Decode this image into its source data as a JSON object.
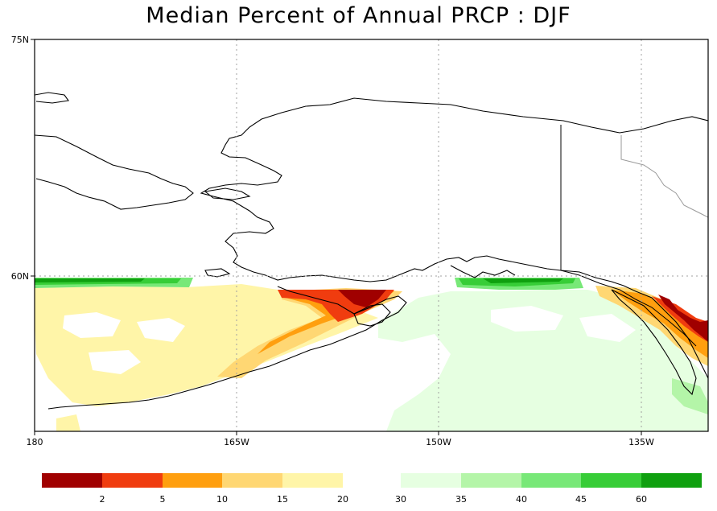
{
  "title": "Median Percent of Annual PRCP  :  DJF",
  "axes": {
    "lat_labels": [
      "75N",
      "60N"
    ],
    "lon_labels": [
      "180",
      "165W",
      "150W",
      "135W"
    ]
  },
  "colorbar": {
    "left": {
      "colors": [
        "#a00000",
        "#f03c0f",
        "#ff9f0f",
        "#ffd773",
        "#fff5a8"
      ],
      "labels": [
        "2",
        "5",
        "10",
        "15",
        "20"
      ]
    },
    "right": {
      "colors": [
        "#e6ffe1",
        "#b4f5a8",
        "#78e878",
        "#37cd37",
        "#0fa00f"
      ],
      "labels": [
        "30",
        "35",
        "40",
        "45",
        "60"
      ]
    }
  },
  "colors": {
    "coastline": "#000000",
    "border": "#9a9a9a",
    "gridline": "#a0a0a0"
  }
}
